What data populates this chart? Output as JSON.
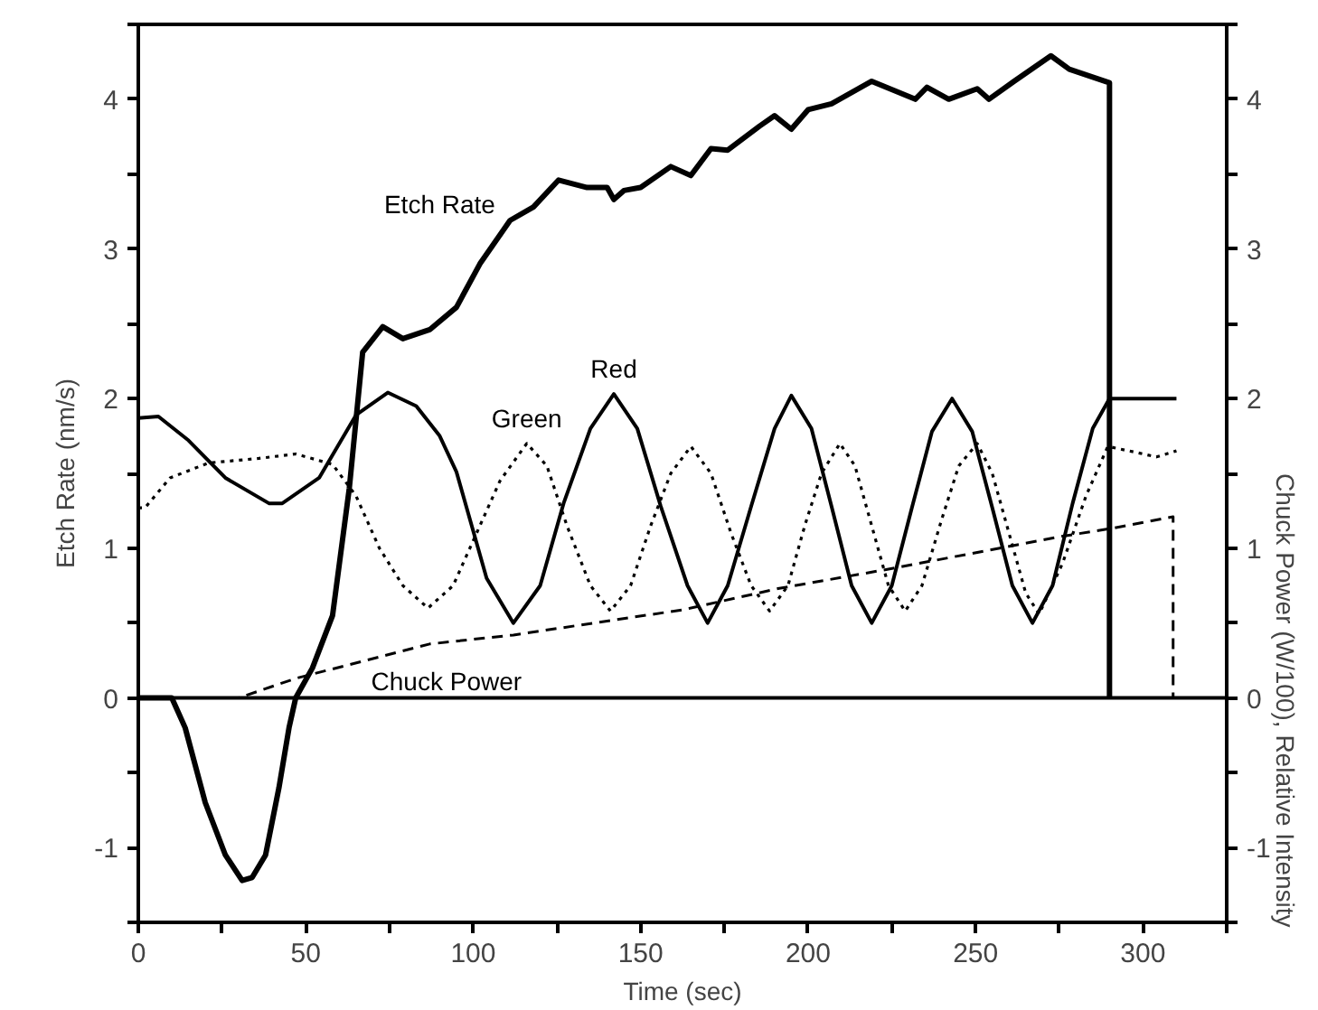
{
  "chart_data": {
    "type": "line",
    "xlabel": "Time (sec)",
    "ylabel": "Etch Rate (nm/s)",
    "y2label": "Chuck Power (W/100), Relative Intensity",
    "xlim": [
      0,
      325
    ],
    "xticks": [
      0,
      {
        "value": 25,
        "label": null
      },
      50,
      {
        "value": 75,
        "label": null
      },
      100,
      {
        "value": 125,
        "label": null
      },
      150,
      {
        "value": 175,
        "label": null
      },
      200,
      {
        "value": 225,
        "label": null
      },
      250,
      {
        "value": 275,
        "label": null
      },
      300,
      {
        "value": 325,
        "label": null
      }
    ],
    "ylim": [
      -1.5,
      4.5
    ],
    "yticks": [
      {
        "value": -1.5,
        "label": null
      },
      -1,
      {
        "value": -0.5,
        "label": null
      },
      0,
      {
        "value": 0.5,
        "label": null
      },
      1,
      {
        "value": 1.5,
        "label": null
      },
      2,
      {
        "value": 2.5,
        "label": null
      },
      3,
      {
        "value": 3.5,
        "label": null
      },
      4,
      {
        "value": 4.5,
        "label": null
      }
    ],
    "y2lim": [
      -1.5,
      4.5
    ],
    "y2ticks": [
      {
        "value": -1.5,
        "label": null
      },
      -1,
      {
        "value": -0.5,
        "label": null
      },
      0,
      {
        "value": 0.5,
        "label": null
      },
      1,
      {
        "value": 1.5,
        "label": null
      },
      2,
      {
        "value": 2.5,
        "label": null
      },
      3,
      {
        "value": 3.5,
        "label": null
      },
      4,
      {
        "value": 4.5,
        "label": null
      }
    ],
    "grid": false,
    "ref_lines": [
      {
        "axis": "y",
        "value": 0,
        "color": "#000000"
      }
    ],
    "series": [
      {
        "name": "Etch Rate",
        "color": "#000000",
        "line_style": "solid",
        "x": [
          0,
          10,
          14,
          20,
          26,
          31,
          34,
          38,
          42,
          45,
          47,
          52,
          58,
          63,
          67,
          73,
          79,
          87,
          95,
          102,
          111,
          118,
          125.5,
          134,
          140,
          142,
          145,
          150,
          159,
          165,
          171,
          176,
          185.5,
          190,
          195,
          200,
          207,
          219,
          232,
          235.5,
          242,
          250.5,
          254,
          261.5,
          272.5,
          278,
          290,
          290
        ],
        "values": [
          0,
          0,
          -0.2,
          -0.7,
          -1.05,
          -1.22,
          -1.2,
          -1.05,
          -0.6,
          -0.2,
          0,
          0.2,
          0.55,
          1.4,
          2.31,
          2.48,
          2.4,
          2.46,
          2.61,
          2.9,
          3.19,
          3.28,
          3.46,
          3.41,
          3.41,
          3.33,
          3.39,
          3.41,
          3.55,
          3.49,
          3.67,
          3.66,
          3.82,
          3.89,
          3.8,
          3.93,
          3.97,
          4.12,
          4.0,
          4.08,
          4.0,
          4.07,
          4.0,
          4.12,
          4.29,
          4.2,
          4.11,
          0
        ]
      },
      {
        "name": "Red",
        "color": "#000000",
        "line_style": "solid",
        "x": [
          0,
          6,
          15,
          26,
          39,
          43,
          54,
          65,
          74.5,
          83,
          90,
          95,
          104,
          112,
          120,
          127,
          135,
          142,
          149,
          156,
          164,
          170,
          176,
          183,
          190,
          195,
          201,
          207,
          213,
          219,
          225,
          231,
          237,
          243,
          249,
          255,
          261,
          267,
          273,
          279,
          285,
          290,
          300,
          310
        ],
        "values": [
          1.87,
          1.88,
          1.72,
          1.47,
          1.3,
          1.3,
          1.47,
          1.89,
          2.04,
          1.95,
          1.75,
          1.51,
          0.8,
          0.5,
          0.75,
          1.3,
          1.8,
          2.03,
          1.8,
          1.28,
          0.75,
          0.5,
          0.75,
          1.28,
          1.8,
          2.02,
          1.8,
          1.28,
          0.75,
          0.5,
          0.75,
          1.27,
          1.78,
          2.0,
          1.78,
          1.27,
          0.75,
          0.5,
          0.75,
          1.3,
          1.8,
          2.0,
          2.0,
          2.0
        ]
      },
      {
        "name": "Green",
        "color": "#000000",
        "line_style": "dotted",
        "x": [
          0,
          2,
          9.5,
          21,
          36,
          47,
          58,
          65,
          72,
          79,
          86.5,
          94,
          101,
          108,
          116,
          122,
          128,
          135,
          141,
          147,
          153,
          159,
          165,
          171,
          177,
          183,
          188.5,
          194,
          199,
          204,
          209.5,
          214,
          219,
          224,
          229,
          234,
          240,
          245,
          250.5,
          255,
          260,
          265,
          269,
          276,
          283,
          289.5,
          298,
          304,
          310
        ],
        "values": [
          1.27,
          1.27,
          1.47,
          1.57,
          1.6,
          1.63,
          1.56,
          1.35,
          1.0,
          0.75,
          0.6,
          0.75,
          1.1,
          1.45,
          1.7,
          1.55,
          1.15,
          0.75,
          0.58,
          0.75,
          1.15,
          1.5,
          1.68,
          1.5,
          1.1,
          0.75,
          0.58,
          0.75,
          1.15,
          1.5,
          1.7,
          1.55,
          1.15,
          0.75,
          0.58,
          0.75,
          1.2,
          1.55,
          1.7,
          1.5,
          1.1,
          0.7,
          0.56,
          0.9,
          1.35,
          1.68,
          1.64,
          1.61,
          1.65
        ]
      },
      {
        "name": "Chuck Power",
        "color": "#000000",
        "line_style": "dashed",
        "x": [
          0,
          30,
          47,
          87,
          112,
          163,
          191,
          224,
          276,
          290,
          309,
          309
        ],
        "values": [
          0,
          0,
          0.13,
          0.36,
          0.42,
          0.59,
          0.73,
          0.86,
          1.08,
          1.13,
          1.21,
          0
        ]
      }
    ]
  }
}
